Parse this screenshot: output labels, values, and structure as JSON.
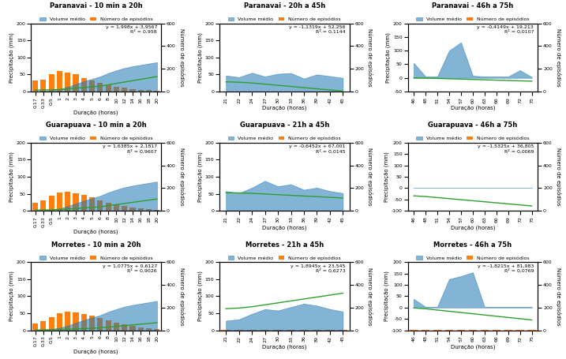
{
  "chart_data": [
    {
      "type": "bar",
      "title": "Paranavai - 10 min a 20h",
      "categories": [
        "0,17",
        "0,33",
        "0,5",
        "1",
        "2",
        "3",
        "4",
        "5",
        "6",
        "8",
        "10",
        "12",
        "14",
        "16",
        "18",
        "20"
      ],
      "x_label": "Duração (horas)",
      "y_label": "Precipitação (mm)",
      "y2_label": "Número de episódios",
      "ylim": [
        0,
        200
      ],
      "yticks": [
        0,
        50,
        100,
        150,
        200
      ],
      "y2lim": [
        0,
        600
      ],
      "y2ticks": [
        0,
        200,
        400,
        600
      ],
      "legend": "upper center",
      "annotation": "y = 1,998x + 3,9567\nR² = 0,958",
      "series": [
        {
          "name": "Volume médio",
          "type": "area",
          "color": "#1f77b4",
          "values": [
            1,
            2,
            4,
            7,
            14,
            22,
            30,
            37,
            44,
            54,
            62,
            69,
            74,
            78,
            82,
            86
          ]
        },
        {
          "name": "Número de episódios",
          "type": "bar",
          "axis": "y2",
          "color": "#ff7f0e",
          "values": [
            95,
            105,
            155,
            180,
            170,
            150,
            120,
            95,
            78,
            62,
            45,
            33,
            24,
            17,
            11,
            7
          ]
        },
        {
          "type": "line",
          "color": "#2ca02c",
          "values": [
            4.29636,
            4.61604,
            4.9557,
            5.9547,
            7.9527,
            9.9507,
            11.9487,
            13.9467,
            15.9447,
            19.9407,
            23.9367,
            27.9327,
            31.9287,
            35.9247,
            39.9207,
            43.9167
          ]
        }
      ]
    },
    {
      "type": "bar",
      "title": "Paranavai - 20h a 45h",
      "categories": [
        "21",
        "22",
        "24",
        "27",
        "30",
        "33",
        "36",
        "39",
        "42",
        "45"
      ],
      "x_label": "Duração (horas)",
      "y_label": "Precipitação (mm)",
      "y2_label": "Número de episódios",
      "ylim": [
        0,
        200
      ],
      "yticks": [
        0,
        50,
        100,
        150,
        200
      ],
      "y2lim": [
        0,
        600
      ],
      "y2ticks": [
        0,
        200,
        400,
        600
      ],
      "legend": "upper center",
      "annotation": "y = -1,1319x + 52,256\nR² = 0,1144",
      "series": [
        {
          "name": "Volume médio",
          "type": "area",
          "color": "#1f77b4",
          "values": [
            47,
            42,
            55,
            44,
            52,
            54,
            38,
            50,
            45,
            40
          ]
        },
        {
          "name": "Número de episódios",
          "type": "bar",
          "axis": "y2",
          "color": "#ff7f0e",
          "values": [
            3,
            3,
            3,
            3,
            3,
            3,
            3,
            3,
            3,
            3
          ]
        },
        {
          "type": "line",
          "color": "#2ca02c",
          "values": [
            28.4861,
            27.3542,
            25.0904,
            21.6947,
            18.299,
            14.9033,
            11.5076,
            8.1119,
            4.7162,
            1.3205
          ]
        }
      ]
    },
    {
      "type": "bar",
      "title": "Paranavai - 46h a 75h",
      "categories": [
        "46",
        "48",
        "51",
        "54",
        "57",
        "60",
        "63",
        "66",
        "69",
        "72",
        "75"
      ],
      "x_label": "Duração (horas)",
      "y_label": "Precipitação (mm)",
      "y2_label": "Número de episódios",
      "ylim": [
        -50,
        200
      ],
      "yticks": [
        -50,
        0,
        50,
        100,
        150,
        200
      ],
      "y2lim": [
        0,
        600
      ],
      "y2ticks": [
        0,
        200,
        400,
        600
      ],
      "legend": "upper center",
      "annotation": "y = -0,4149x + 19,213\nR² = 0,0107",
      "series": [
        {
          "name": "Volume médio",
          "type": "area",
          "color": "#1f77b4",
          "values": [
            55,
            5,
            5,
            100,
            130,
            8,
            5,
            5,
            5,
            28,
            3
          ]
        },
        {
          "name": "Número de episódios",
          "type": "bar",
          "axis": "y2",
          "color": "#ff7f0e",
          "values": [
            3,
            1,
            1,
            1,
            1,
            1,
            1,
            1,
            1,
            1,
            1
          ]
        },
        {
          "type": "line",
          "color": "#2ca02c",
          "values": [
            0.1276,
            -0.7022,
            -1.9469,
            -3.1916,
            -4.4363,
            -5.681,
            -6.9257,
            -8.1704,
            -9.4151,
            -10.6598,
            -11.9045
          ]
        }
      ]
    },
    {
      "type": "bar",
      "title": "Guarapuava - 10 min a 20h",
      "categories": [
        "0,17",
        "0,33",
        "0,5",
        "1",
        "2",
        "3",
        "4",
        "5",
        "6",
        "8",
        "10",
        "12",
        "14",
        "16",
        "18",
        "20"
      ],
      "x_label": "Duração (horas)",
      "y_label": "Precipitação (mm)",
      "y2_label": "Número de episódios",
      "ylim": [
        0,
        200
      ],
      "yticks": [
        0,
        50,
        100,
        150,
        200
      ],
      "y2lim": [
        0,
        600
      ],
      "y2ticks": [
        0,
        200,
        400,
        600
      ],
      "legend": "upper center",
      "annotation": "y = 1,6385x + 2,1817\nR² = 0,9607",
      "series": [
        {
          "name": "Volume médio",
          "type": "area",
          "color": "#1f77b4",
          "values": [
            1,
            2,
            4,
            7,
            14,
            22,
            30,
            37,
            44,
            54,
            62,
            69,
            74,
            78,
            82,
            86
          ]
        },
        {
          "name": "Número de episódios",
          "type": "bar",
          "axis": "y2",
          "color": "#ff7f0e",
          "values": [
            70,
            95,
            135,
            165,
            172,
            158,
            142,
            118,
            92,
            72,
            56,
            41,
            30,
            21,
            14,
            9
          ]
        },
        {
          "type": "line",
          "color": "#2ca02c",
          "values": [
            2.460245,
            2.722405,
            3.00095,
            3.8202,
            5.4587,
            7.0972,
            8.7357,
            10.3742,
            12.0127,
            15.2897,
            18.5667,
            21.8437,
            25.1207,
            28.3977,
            31.6747,
            34.9517
          ]
        }
      ]
    },
    {
      "type": "bar",
      "title": "Guarapuava - 21h a 45h",
      "categories": [
        "21",
        "22",
        "24",
        "27",
        "30",
        "33",
        "36",
        "39",
        "42",
        "45"
      ],
      "x_label": "Duração (horas)",
      "y_label": "Precipitação (mm)",
      "y2_label": "Número de episódios",
      "ylim": [
        0,
        200
      ],
      "yticks": [
        0,
        50,
        100,
        150,
        200
      ],
      "y2lim": [
        0,
        600
      ],
      "y2ticks": [
        0,
        200,
        400,
        600
      ],
      "legend": "upper center",
      "annotation": "y = -0,6452x + 67,001\nR² = 0,0145",
      "series": [
        {
          "name": "Volume médio",
          "type": "area",
          "color": "#1f77b4",
          "values": [
            58,
            52,
            68,
            88,
            72,
            78,
            62,
            68,
            58,
            52
          ]
        },
        {
          "name": "Número de episódios",
          "type": "bar",
          "axis": "y2",
          "color": "#ff7f0e",
          "values": [
            3,
            3,
            3,
            3,
            3,
            3,
            3,
            3,
            3,
            3
          ]
        },
        {
          "type": "line",
          "color": "#2ca02c",
          "values": [
            53.4518,
            52.8066,
            51.5162,
            49.5806,
            47.645,
            45.7094,
            43.7738,
            41.8382,
            39.9026,
            37.967
          ]
        }
      ]
    },
    {
      "type": "bar",
      "title": "Guarapuava - 46h a 75h",
      "categories": [
        "46",
        "48",
        "51",
        "54",
        "57",
        "60",
        "63",
        "66",
        "69",
        "72",
        "75"
      ],
      "x_label": "Duração (horas)",
      "y_label": "Precipitação (mm)",
      "y2_label": "Número de episódios",
      "ylim": [
        -100,
        200
      ],
      "yticks": [
        -100,
        -50,
        0,
        50,
        100,
        150,
        200
      ],
      "y2lim": [
        0,
        600
      ],
      "y2ticks": [
        0,
        200,
        400,
        600
      ],
      "legend": "upper center",
      "annotation": "y = -1,5325x + 36,805\nR² = 0,0069",
      "series": [
        {
          "name": "Volume médio",
          "type": "area",
          "color": "#1f77b4",
          "values": [
            3,
            3,
            3,
            3,
            3,
            3,
            3,
            3,
            3,
            3,
            3
          ]
        },
        {
          "name": "Número de episódios",
          "type": "bar",
          "axis": "y2",
          "color": "#ff7f0e",
          "values": [
            3,
            3,
            3,
            3,
            3,
            3,
            3,
            3,
            3,
            3,
            3
          ]
        },
        {
          "type": "line",
          "color": "#2ca02c",
          "values": [
            -33.69,
            -36.755,
            -41.3525,
            -45.95,
            -50.5475,
            -55.145,
            -59.7425,
            -64.34,
            -68.9375,
            -73.535,
            -78.1325
          ]
        }
      ]
    },
    {
      "type": "bar",
      "title": "Morretes - 10 min a 20h",
      "categories": [
        "0,17",
        "0,33",
        "0,5",
        "1",
        "2",
        "3",
        "4",
        "5",
        "6",
        "8",
        "10",
        "12",
        "14",
        "16",
        "18",
        "20"
      ],
      "x_label": "Duração (horas)",
      "y_label": "Precipitação (mm)",
      "y2_label": "Número de episódios",
      "ylim": [
        0,
        200
      ],
      "yticks": [
        0,
        50,
        100,
        150,
        200
      ],
      "y2lim": [
        0,
        600
      ],
      "y2ticks": [
        0,
        200,
        400,
        600
      ],
      "legend": "upper center",
      "annotation": "y = 1,0775x + 0,6127\nR² = 0,9026",
      "series": [
        {
          "name": "Volume médio",
          "type": "area",
          "color": "#1f77b4",
          "values": [
            1,
            2,
            4,
            7,
            14,
            22,
            30,
            37,
            44,
            54,
            62,
            69,
            74,
            78,
            82,
            86
          ]
        },
        {
          "name": "Número de episódios",
          "type": "bar",
          "axis": "y2",
          "color": "#ff7f0e",
          "values": [
            58,
            82,
            118,
            148,
            162,
            158,
            145,
            128,
            108,
            86,
            66,
            50,
            36,
            26,
            18,
            12
          ]
        },
        {
          "type": "line",
          "color": "#2ca02c",
          "values": [
            0.795875,
            0.968275,
            1.15145,
            1.6902,
            2.7677,
            3.8452,
            4.9227,
            6.0002,
            7.0777,
            9.2327,
            11.3877,
            13.5427,
            15.6977,
            17.8527,
            20.0077,
            22.1627
          ]
        }
      ]
    },
    {
      "type": "bar",
      "title": "Morretes - 21h a 45h",
      "categories": [
        "21",
        "22",
        "24",
        "27",
        "30",
        "33",
        "36",
        "39",
        "42",
        "45"
      ],
      "x_label": "Duração (horas)",
      "y_label": "Precipitação (mm)",
      "y2_label": "Número de episódios",
      "ylim": [
        0,
        200
      ],
      "yticks": [
        0,
        50,
        100,
        150,
        200
      ],
      "y2lim": [
        0,
        600
      ],
      "y2ticks": [
        0,
        200,
        400,
        600
      ],
      "legend": "upper center",
      "annotation": "y = 1,8945x + 23,545\nR² = 0,6273",
      "series": [
        {
          "name": "Volume médio",
          "type": "area",
          "color": "#1f77b4",
          "values": [
            28,
            32,
            48,
            62,
            58,
            68,
            78,
            72,
            62,
            55
          ]
        },
        {
          "name": "Número de episódios",
          "type": "bar",
          "axis": "y2",
          "color": "#ff7f0e",
          "values": [
            3,
            3,
            3,
            3,
            3,
            3,
            3,
            3,
            3,
            3
          ]
        },
        {
          "type": "line",
          "color": "#2ca02c",
          "values": [
            63.3295,
            65.224,
            69.013,
            74.6965,
            80.38,
            86.0635,
            91.747,
            97.4305,
            103.114,
            108.7975
          ]
        }
      ]
    },
    {
      "type": "bar",
      "title": "Morretes - 46h a 75h",
      "categories": [
        "46",
        "48",
        "51",
        "54",
        "57",
        "60",
        "63",
        "66",
        "69",
        "72",
        "75"
      ],
      "x_label": "Duração (horas)",
      "y_label": "Precipitação (mm)",
      "y2_label": "Número de episódios",
      "ylim": [
        -100,
        200
      ],
      "yticks": [
        -100,
        -50,
        0,
        50,
        100,
        150,
        200
      ],
      "y2lim": [
        0,
        600
      ],
      "y2ticks": [
        0,
        200,
        400,
        600
      ],
      "legend": "upper center",
      "annotation": "y = -1,8215x + 81,983\nR² = 0,0769",
      "series": [
        {
          "name": "Volume médio",
          "type": "area",
          "color": "#1f77b4",
          "values": [
            38,
            3,
            3,
            125,
            138,
            155,
            3,
            3,
            3,
            3,
            3
          ]
        },
        {
          "name": "Número de episódios",
          "type": "bar",
          "axis": "y2",
          "color": "#ff7f0e",
          "values": [
            3,
            3,
            3,
            3,
            3,
            3,
            3,
            3,
            3,
            3,
            3
          ]
        },
        {
          "type": "line",
          "color": "#2ca02c",
          "values": [
            -1.806,
            -5.449,
            -10.9135,
            -16.378,
            -21.8425,
            -27.307,
            -32.7715,
            -38.236,
            -43.7005,
            -49.165,
            -54.6295
          ]
        }
      ]
    }
  ]
}
